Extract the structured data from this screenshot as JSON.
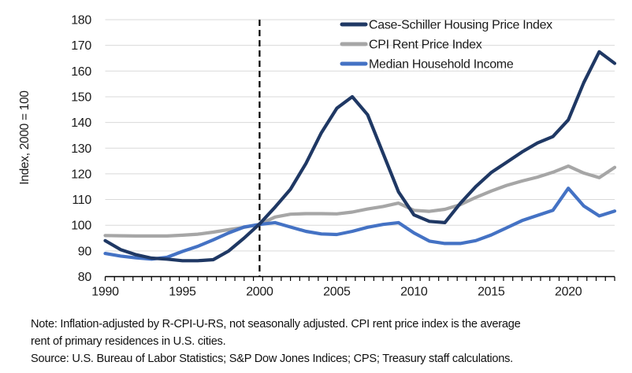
{
  "chart": {
    "y_axis_title": "Index, 2000 = 100",
    "y_tick_labels": [
      180,
      170,
      160,
      150,
      140,
      130,
      120,
      110,
      100,
      90,
      80
    ],
    "x_tick_labels": [
      1990,
      1995,
      2000,
      2005,
      2010,
      2015,
      2020
    ],
    "colors": {
      "grid": "#d9d9d9",
      "axis": "#000000",
      "text": "#1a1a1a",
      "reference_line": "#000000"
    }
  },
  "chart_data": {
    "type": "line",
    "title": "",
    "xlabel": "",
    "ylabel": "Index, 2000 = 100",
    "xlim": [
      1990,
      2023
    ],
    "ylim": [
      80,
      180
    ],
    "grid": true,
    "legend_position": "top-right",
    "reference_line_x": 2000,
    "x": [
      1990,
      1991,
      1992,
      1993,
      1994,
      1995,
      1996,
      1997,
      1998,
      1999,
      2000,
      2001,
      2002,
      2003,
      2004,
      2005,
      2006,
      2007,
      2008,
      2009,
      2010,
      2011,
      2012,
      2013,
      2014,
      2015,
      2016,
      2017,
      2018,
      2019,
      2020,
      2021,
      2022,
      2023
    ],
    "series": [
      {
        "key": "case-schiller",
        "name": "Case-Schiller Housing Price Index",
        "color": "#1f3864",
        "values": [
          94,
          90.5,
          88.5,
          87.2,
          86.8,
          86.2,
          86.2,
          86.6,
          90,
          95,
          100.5,
          107,
          114,
          124,
          136,
          145.5,
          150,
          143,
          128,
          113,
          104,
          101.5,
          101,
          108.5,
          115,
          120.5,
          124.5,
          128.5,
          132,
          134.5,
          141,
          155.5,
          167.5,
          163
        ]
      },
      {
        "key": "cpi-rent",
        "name": "CPI Rent Price Index",
        "color": "#a6a6a6",
        "values": [
          96,
          95.9,
          95.8,
          95.8,
          95.8,
          96.1,
          96.5,
          97.3,
          98.3,
          99.2,
          100.3,
          103.2,
          104.3,
          104.5,
          104.5,
          104.4,
          105.1,
          106.3,
          107.3,
          108.6,
          105.8,
          105.4,
          106.2,
          108,
          110.8,
          113.3,
          115.5,
          117.2,
          118.7,
          120.6,
          123,
          120.3,
          118.5,
          122.5
        ]
      },
      {
        "key": "median-income",
        "name": "Median Household Income",
        "color": "#4472c4",
        "values": [
          89,
          88,
          87.3,
          86.8,
          87.5,
          89.8,
          91.8,
          94.3,
          97,
          99.3,
          100.3,
          101,
          99.3,
          97.6,
          96.6,
          96.4,
          97.6,
          99.2,
          100.3,
          101,
          97,
          93.8,
          92.9,
          92.9,
          94,
          96.2,
          99,
          101.8,
          103.8,
          105.8,
          114.4,
          107.5,
          103.6,
          105.5
        ]
      }
    ]
  },
  "note": {
    "line1": "Note: Inflation-adjusted by R-CPI-U-RS, not seasonally adjusted. CPI rent price index is the average",
    "line2": "rent of primary residences in U.S. cities.",
    "source": "Source: U.S. Bureau of Labor Statistics; S&P Dow Jones Indices; CPS; Treasury staff calculations."
  }
}
